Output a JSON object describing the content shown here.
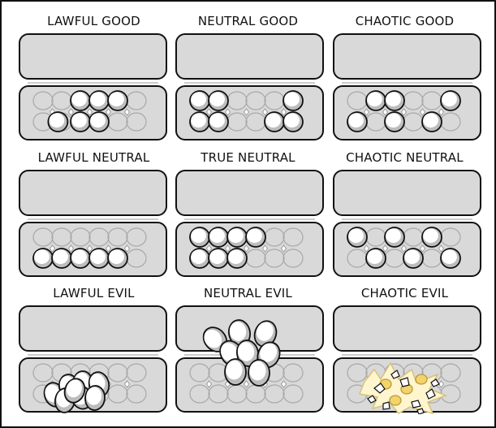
{
  "comic": {
    "panels": [
      {
        "label": "LAWFUL GOOD",
        "eggs": "lawful-good"
      },
      {
        "label": "NEUTRAL GOOD",
        "eggs": "neutral-good"
      },
      {
        "label": "CHAOTIC GOOD",
        "eggs": "chaotic-good"
      },
      {
        "label": "LAWFUL NEUTRAL",
        "eggs": "lawful-neutral"
      },
      {
        "label": "TRUE NEUTRAL",
        "eggs": "true-neutral"
      },
      {
        "label": "CHAOTIC NEUTRAL",
        "eggs": "chaotic-neutral"
      },
      {
        "label": "LAWFUL EVIL",
        "eggs": "lawful-evil"
      },
      {
        "label": "NEUTRAL EVIL",
        "eggs": "neutral-evil"
      },
      {
        "label": "CHAOTIC EVIL",
        "eggs": "chaotic-evil"
      }
    ]
  },
  "colors": {
    "outline": "#111111",
    "carton": "#d9d9d9",
    "egg_highlight": "#ffffff",
    "egg_shade": "#bdbdbd",
    "yolk": "#f3d36b"
  }
}
